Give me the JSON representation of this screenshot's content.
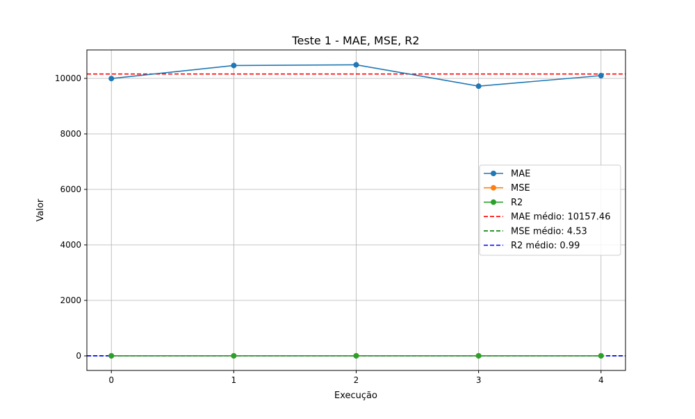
{
  "chart_data": {
    "type": "line",
    "title": "Teste 1 - MAE, MSE, R2",
    "xlabel": "Execução",
    "ylabel": "Valor",
    "x": [
      0,
      1,
      2,
      3,
      4
    ],
    "xlim": [
      -0.2,
      4.2
    ],
    "ylim": [
      -525,
      11025
    ],
    "xticks": [
      0,
      1,
      2,
      3,
      4
    ],
    "xtick_labels": [
      "0",
      "1",
      "2",
      "3",
      "4"
    ],
    "yticks": [
      0,
      2000,
      4000,
      6000,
      8000,
      10000
    ],
    "ytick_labels": [
      "0",
      "2000",
      "4000",
      "6000",
      "8000",
      "10000"
    ],
    "grid": true,
    "legend_position": "center-right",
    "series": [
      {
        "name": "MAE",
        "values": [
          9995,
          10465,
          10490,
          9720,
          10100
        ],
        "color": "#1f77b4",
        "style": "solid-marker"
      },
      {
        "name": "MSE",
        "values": [
          4.4,
          4.6,
          4.5,
          4.6,
          4.55
        ],
        "color": "#ff7f0e",
        "style": "solid-marker"
      },
      {
        "name": "R2",
        "values": [
          0.99,
          0.99,
          0.99,
          0.99,
          0.99
        ],
        "color": "#2ca02c",
        "style": "solid-marker"
      }
    ],
    "reference_lines": [
      {
        "name": "MAE médio: 10157.46",
        "value": 10157.46,
        "color": "#ff0000",
        "style": "dashed"
      },
      {
        "name": "MSE médio: 4.53",
        "value": 4.53,
        "color": "#008000",
        "style": "dashed"
      },
      {
        "name": "R2 médio: 0.99",
        "value": 0.99,
        "color": "#0000ff",
        "style": "dashed"
      }
    ]
  }
}
